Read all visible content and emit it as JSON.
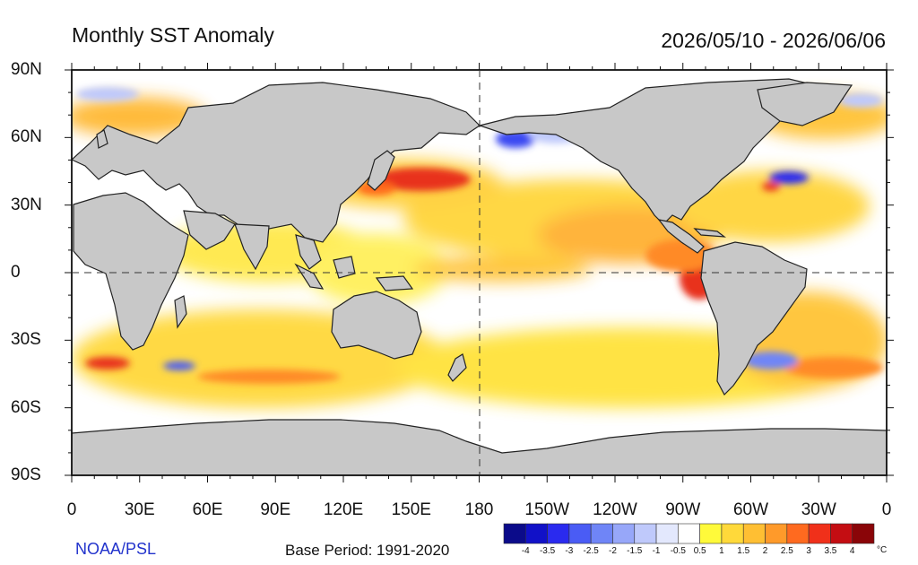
{
  "title": "Monthly SST Anomaly",
  "period": "2026/05/10 - 2026/06/06",
  "credit": "NOAA/PSL",
  "base_period": "Base Period: 1991-2020",
  "lat_labels": [
    "90N",
    "60N",
    "30N",
    "0",
    "30S",
    "60S",
    "90S"
  ],
  "lon_labels": [
    "0",
    "30E",
    "60E",
    "90E",
    "120E",
    "150E",
    "180",
    "150W",
    "120W",
    "90W",
    "60W",
    "30W",
    "0"
  ],
  "colorbar": {
    "labels": [
      "-4",
      "-3.5",
      "-3",
      "-2.5",
      "-2",
      "-1.5",
      "-1",
      "-0.5",
      "0.5",
      "1",
      "1.5",
      "2",
      "2.5",
      "3",
      "3.5",
      "4"
    ],
    "unit": "°C",
    "colors": [
      "#0b0b8a",
      "#1111c8",
      "#2a2aef",
      "#4a5cf5",
      "#6f85f7",
      "#97a7f9",
      "#bfc9fb",
      "#e3e8fd",
      "#ffffff",
      "#fffa3a",
      "#ffd93a",
      "#ffbf33",
      "#ff9a2a",
      "#ff6a1f",
      "#f0301a",
      "#c40d12",
      "#8a0508"
    ]
  },
  "map": {
    "ocean_base_color": "#ffffff",
    "land_color": "#c8c8c8",
    "anomaly_regions": [
      {
        "name": "NE Pacific warm band",
        "anomaly": 1.5
      },
      {
        "name": "Peru coast warm",
        "anomaly": 3.0
      },
      {
        "name": "Kuroshio extension warm",
        "anomaly": 3.0
      },
      {
        "name": "Gulf Stream cold",
        "anomaly": -2.5
      },
      {
        "name": "Bering Sea cold",
        "anomaly": -2.0
      },
      {
        "name": "Southern Ocean warm belt",
        "anomaly": 1.5
      }
    ]
  }
}
